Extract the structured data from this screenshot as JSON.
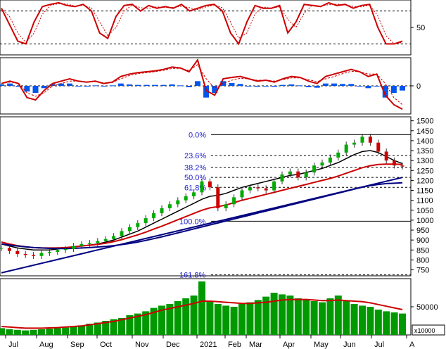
{
  "chart_data": [
    {
      "type": "line",
      "panel": "stochastic",
      "ylim": [
        0,
        100
      ],
      "y_ticks": [
        50
      ],
      "reference_levels": [
        20,
        80
      ],
      "grid": false,
      "series": [
        {
          "values": [
            85,
            55,
            25,
            20,
            60,
            88,
            92,
            95,
            90,
            88,
            92,
            80,
            40,
            30,
            70,
            90,
            92,
            80,
            90,
            85,
            88,
            85,
            92,
            80,
            85,
            90,
            92,
            80,
            40,
            20,
            60,
            90,
            85,
            85,
            90,
            40,
            60,
            92,
            90,
            88,
            95,
            90,
            92,
            85,
            90,
            92,
            50,
            20,
            20,
            25
          ],
          "color": "#cc0000"
        }
      ]
    },
    {
      "type": "line",
      "panel": "macd",
      "ylim": [
        -60,
        60
      ],
      "y_ticks": [
        0
      ],
      "grid": false,
      "series": [
        {
          "values": [
            5,
            10,
            5,
            -25,
            -30,
            -10,
            5,
            10,
            15,
            10,
            8,
            10,
            5,
            8,
            20,
            25,
            28,
            30,
            32,
            35,
            40,
            38,
            30,
            55,
            -10,
            -20,
            15,
            18,
            20,
            15,
            10,
            12,
            8,
            15,
            20,
            18,
            10,
            5,
            20,
            25,
            30,
            35,
            30,
            20,
            25,
            -20,
            -40,
            -50
          ],
          "color": "#cc0000"
        },
        {
          "values": [
            5,
            8,
            6,
            -15,
            -22,
            -15,
            0,
            5,
            10,
            10,
            8,
            9,
            6,
            7,
            15,
            22,
            26,
            28,
            30,
            33,
            37,
            37,
            33,
            45,
            15,
            -5,
            5,
            12,
            16,
            15,
            12,
            12,
            10,
            13,
            17,
            17,
            13,
            9,
            15,
            20,
            26,
            31,
            30,
            25,
            25,
            5,
            -25,
            -40
          ],
          "color": "#cc0000"
        }
      ],
      "histogram": [
        3,
        5,
        -2,
        -12,
        -15,
        -5,
        4,
        5,
        5,
        0,
        0,
        1,
        -1,
        1,
        5,
        3,
        2,
        2,
        2,
        2,
        3,
        1,
        -3,
        10,
        -25,
        -15,
        10,
        6,
        4,
        0,
        -2,
        0,
        -2,
        2,
        3,
        1,
        -3,
        -4,
        5,
        5,
        4,
        4,
        0,
        -5,
        0,
        -25,
        -15,
        -10
      ]
    },
    {
      "type": "candlestick",
      "panel": "price",
      "x_ticks": [
        "Jul",
        "Aug",
        "Sep",
        "Oct",
        "Nov",
        "Dec",
        "2021",
        "Feb",
        "Mar",
        "Apr",
        "May",
        "Jun",
        "Jul",
        "A"
      ],
      "y_ticks": [
        1500,
        1450,
        1400,
        1350,
        1300,
        1250,
        1200,
        1150,
        1100,
        1050,
        1000,
        950,
        900,
        850,
        800,
        750
      ],
      "ylim": [
        720,
        1520
      ],
      "grid": false,
      "close": [
        860,
        845,
        830,
        825,
        820,
        835,
        840,
        850,
        855,
        870,
        880,
        885,
        895,
        905,
        920,
        945,
        965,
        985,
        1010,
        1035,
        1060,
        1080,
        1100,
        1120,
        1140,
        1195,
        1165,
        1060,
        1080,
        1115,
        1150,
        1165,
        1160,
        1150,
        1195,
        1230,
        1245,
        1215,
        1240,
        1275,
        1290,
        1315,
        1340,
        1380,
        1390,
        1420,
        1390,
        1345,
        1300,
        1275,
        1270
      ],
      "moving_averages": [
        {
          "name": "MA black",
          "color": "#000000",
          "values": [
            880,
            870,
            860,
            855,
            850,
            850,
            850,
            855,
            860,
            865,
            870,
            875,
            880,
            890,
            900,
            915,
            930,
            945,
            965,
            985,
            1005,
            1025,
            1045,
            1065,
            1085,
            1105,
            1120,
            1125,
            1135,
            1150,
            1165,
            1175,
            1185,
            1195,
            1205,
            1215,
            1225,
            1230,
            1240,
            1250,
            1260,
            1275,
            1290,
            1310,
            1330,
            1345,
            1350,
            1340,
            1320,
            1300,
            1285
          ]
        },
        {
          "name": "MA red",
          "color": "#cc0000",
          "values": [
            890,
            880,
            872,
            866,
            862,
            860,
            860,
            860,
            862,
            866,
            870,
            874,
            878,
            884,
            892,
            902,
            914,
            926,
            940,
            955,
            970,
            986,
            1002,
            1018,
            1034,
            1050,
            1062,
            1068,
            1076,
            1088,
            1100,
            1110,
            1120,
            1130,
            1140,
            1150,
            1160,
            1170,
            1180,
            1190,
            1200,
            1210,
            1222,
            1236,
            1250,
            1264,
            1274,
            1280,
            1282,
            1282,
            1280
          ]
        },
        {
          "name": "MA blue",
          "color": "#000080",
          "values": [
            880,
            875,
            870,
            866,
            862,
            860,
            858,
            857,
            857,
            858,
            860,
            862,
            865,
            868,
            872,
            877,
            883,
            890,
            898,
            907,
            916,
            926,
            936,
            946,
            956,
            966,
            976,
            986,
            996,
            1006,
            1016,
            1026,
            1036,
            1046,
            1056,
            1066,
            1076,
            1086,
            1096,
            1106,
            1116,
            1126,
            1136,
            1146,
            1156,
            1166,
            1174,
            1180,
            1184,
            1186,
            1188
          ]
        }
      ],
      "fibonacci": [
        {
          "label": "0.0%",
          "value": 1430
        },
        {
          "label": "23.6%",
          "value": 1325
        },
        {
          "label": "38.2%",
          "value": 1265
        },
        {
          "label": "50.0%",
          "value": 1215
        },
        {
          "label": "61.8%",
          "value": 1165
        },
        {
          "label": "100.0%",
          "value": 995
        },
        {
          "label": "161.8%",
          "value": 725
        }
      ],
      "trendlines": [
        {
          "from": {
            "x": 0,
            "y": 735
          },
          "to": {
            "x": 50,
            "y": 1215
          },
          "color": "#000080"
        }
      ]
    },
    {
      "type": "bar",
      "panel": "volume",
      "y_ticks": [
        50000
      ],
      "unit_label": "x10000",
      "ylim": [
        0,
        100000
      ],
      "grid": false,
      "values": [
        12000,
        10000,
        9000,
        8000,
        9000,
        10000,
        11000,
        12000,
        13000,
        15000,
        17000,
        20000,
        22000,
        25000,
        28000,
        30000,
        35000,
        38000,
        42000,
        48000,
        52000,
        55000,
        60000,
        65000,
        70000,
        95000,
        60000,
        55000,
        52000,
        50000,
        55000,
        58000,
        62000,
        68000,
        75000,
        72000,
        70000,
        65000,
        62000,
        60000,
        58000,
        65000,
        70000,
        60000,
        55000,
        52000,
        50000,
        45000,
        42000,
        40000,
        38000
      ],
      "moving_average": {
        "color": "#cc0000",
        "values": [
          15000,
          14000,
          13000,
          12000,
          12000,
          12000,
          12500,
          13000,
          14000,
          15000,
          16000,
          18000,
          20000,
          22000,
          24000,
          27000,
          30000,
          33000,
          36000,
          40000,
          44000,
          47000,
          50000,
          53000,
          56000,
          60000,
          60000,
          59000,
          58000,
          57000,
          56000,
          56000,
          57000,
          58000,
          60000,
          62000,
          63000,
          63000,
          63000,
          62000,
          61000,
          61000,
          62000,
          61000,
          60000,
          59000,
          57000,
          54000,
          51000,
          48000,
          45000
        ]
      }
    }
  ]
}
